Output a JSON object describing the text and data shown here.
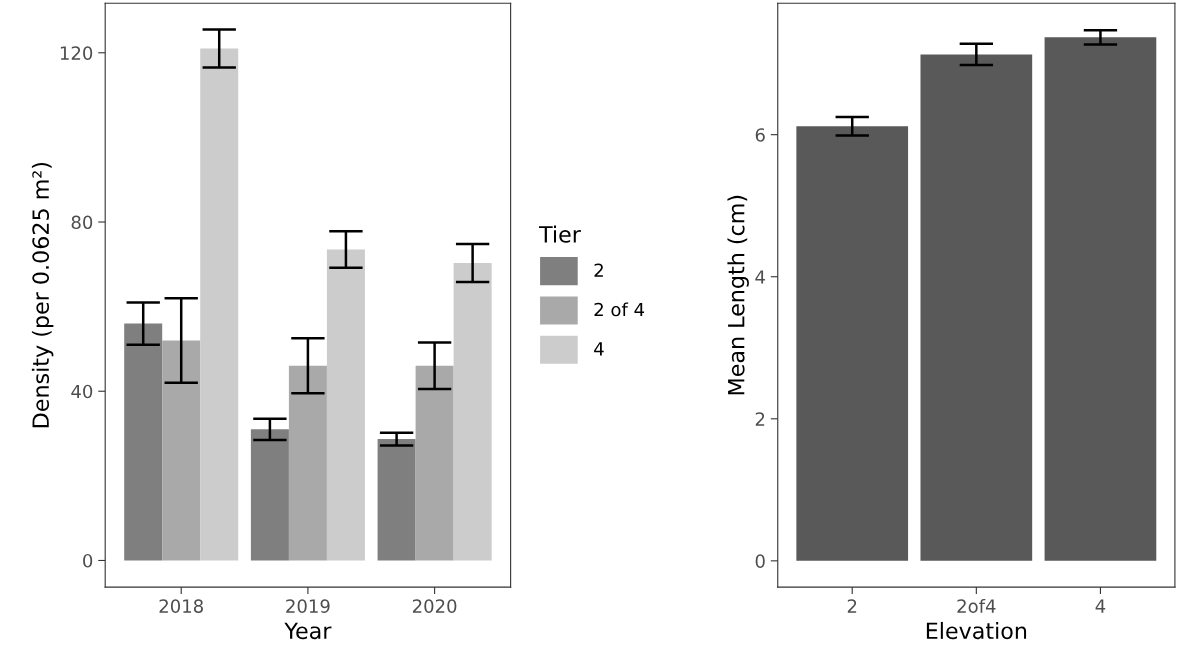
{
  "chart_data": [
    {
      "type": "bar",
      "xlabel": "Year",
      "ylabel": "Density (per 0.0625 m²)",
      "legend_title": "Tier",
      "legend": "right",
      "grid": false,
      "categories": [
        "2018",
        "2019",
        "2020"
      ],
      "ylim": [
        -6.3,
        131.7
      ],
      "yticks": [
        0,
        40,
        80,
        120
      ],
      "series": [
        {
          "name": "2",
          "color": "#7f7f7f",
          "values": [
            56,
            31,
            28.7
          ],
          "errors": [
            5,
            2.5,
            1.5
          ]
        },
        {
          "name": "2 of 4",
          "color": "#a9a9a9",
          "values": [
            52,
            46,
            46
          ],
          "errors": [
            10,
            6.5,
            5.5
          ]
        },
        {
          "name": "4",
          "color": "#cccccc",
          "values": [
            121,
            73.5,
            70.3
          ],
          "errors": [
            4.5,
            4.3,
            4.5
          ]
        }
      ]
    },
    {
      "type": "bar",
      "xlabel": "Elevation",
      "ylabel": "Mean Length (cm)",
      "grid": false,
      "categories": [
        "2",
        "2of4",
        "4"
      ],
      "ylim": [
        -0.37,
        7.85
      ],
      "yticks": [
        0,
        2,
        4,
        6
      ],
      "series": [
        {
          "color": "#595959",
          "values": [
            6.12,
            7.13,
            7.37
          ],
          "errors": [
            0.13,
            0.15,
            0.1
          ]
        }
      ]
    }
  ]
}
